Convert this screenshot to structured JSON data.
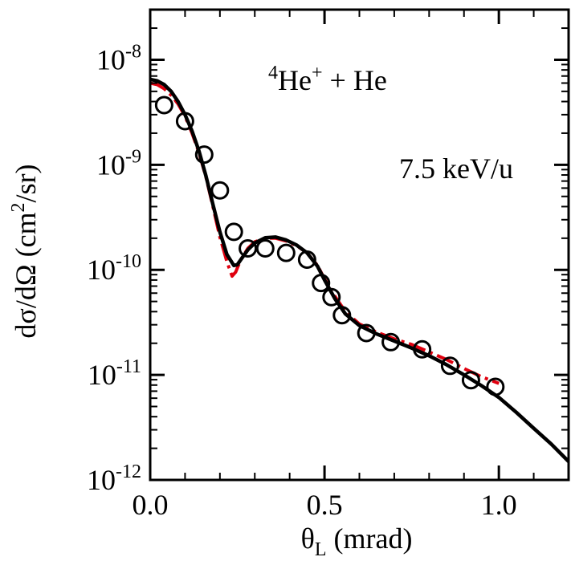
{
  "chart_data": {
    "type": "line",
    "title": "",
    "xlabel": {
      "symbol": "θ",
      "subscript": "L",
      "unit": " (mrad)"
    },
    "ylabel": {
      "main": "dσ/dΩ (cm",
      "sup": "2",
      "tail": "/sr)"
    },
    "annotations": {
      "reaction": {
        "mass_number": "4",
        "ion": "He",
        "charge": "+",
        "rest": " + He"
      },
      "energy": "7.5 keV/u"
    },
    "xlim": [
      0.0,
      1.2
    ],
    "ylim": [
      1e-12,
      3e-08
    ],
    "yscale": "log",
    "grid": false,
    "legend": "none",
    "x_ticks": [
      {
        "value": 0.0,
        "label": "0.0"
      },
      {
        "value": 0.5,
        "label": "0.5"
      },
      {
        "value": 1.0,
        "label": "1.0"
      }
    ],
    "y_ticks": [
      {
        "value": 1e-08,
        "base": "10",
        "exp": "-8"
      },
      {
        "value": 1e-09,
        "base": "10",
        "exp": "-9"
      },
      {
        "value": 1e-10,
        "base": "10",
        "exp": "-10"
      },
      {
        "value": 1e-11,
        "base": "10",
        "exp": "-11"
      },
      {
        "value": 1e-12,
        "base": "10",
        "exp": "-12"
      }
    ],
    "series": [
      {
        "style": "dashdot",
        "color": "#e0000f",
        "x": [
          0.0,
          0.02,
          0.04,
          0.06,
          0.08,
          0.1,
          0.12,
          0.14,
          0.16,
          0.18,
          0.2,
          0.22,
          0.235,
          0.245,
          0.26,
          0.28,
          0.3,
          0.33,
          0.36,
          0.39,
          0.42,
          0.45,
          0.48,
          0.5,
          0.53,
          0.56,
          0.6,
          0.65,
          0.7,
          0.75,
          0.8,
          0.85,
          0.9,
          0.95,
          1.0
        ],
        "y": [
          6e-09,
          5.8e-09,
          5.3e-09,
          4.6e-09,
          3.8e-09,
          2.9e-09,
          2e-09,
          1.3e-09,
          7.6e-10,
          4e-10,
          2.05e-10,
          1.2e-10,
          8.7e-11,
          9.5e-11,
          1.25e-10,
          1.6e-10,
          1.85e-10,
          2e-10,
          2e-10,
          1.88e-10,
          1.7e-10,
          1.45e-10,
          1.1e-10,
          8.2e-11,
          5.6e-11,
          4e-11,
          3.05e-11,
          2.55e-11,
          2.2e-11,
          1.95e-11,
          1.65e-11,
          1.4e-11,
          1.15e-11,
          9.6e-12,
          8.3e-12
        ]
      },
      {
        "style": "solid",
        "color": "#000000",
        "x": [
          0.0,
          0.02,
          0.04,
          0.06,
          0.08,
          0.1,
          0.12,
          0.14,
          0.16,
          0.18,
          0.2,
          0.22,
          0.24,
          0.25,
          0.26,
          0.28,
          0.3,
          0.33,
          0.36,
          0.39,
          0.42,
          0.45,
          0.48,
          0.5,
          0.53,
          0.56,
          0.6,
          0.65,
          0.7,
          0.75,
          0.8,
          0.85,
          0.9,
          0.95,
          1.0,
          1.05,
          1.1,
          1.15,
          1.2
        ],
        "y": [
          6.5e-09,
          6.3e-09,
          5.8e-09,
          5e-09,
          4e-09,
          3e-09,
          2.1e-09,
          1.35e-09,
          7.8e-10,
          4.2e-10,
          2.3e-10,
          1.4e-10,
          1.1e-10,
          1.12e-10,
          1.25e-10,
          1.55e-10,
          1.8e-10,
          2.02e-10,
          2.05e-10,
          1.92e-10,
          1.72e-10,
          1.45e-10,
          1.08e-10,
          8e-11,
          5.3e-11,
          3.8e-11,
          2.95e-11,
          2.45e-11,
          2.1e-11,
          1.8e-11,
          1.52e-11,
          1.25e-11,
          1e-11,
          7.9e-12,
          6.1e-12,
          4.4e-12,
          3.1e-12,
          2.2e-12,
          1.5e-12
        ]
      },
      {
        "style": "markers",
        "marker": "open-circle",
        "color": "#000000",
        "x": [
          0.04,
          0.1,
          0.155,
          0.2,
          0.24,
          0.28,
          0.33,
          0.39,
          0.45,
          0.49,
          0.52,
          0.55,
          0.62,
          0.69,
          0.78,
          0.86,
          0.92,
          0.99
        ],
        "y": [
          3.7e-09,
          2.6e-09,
          1.25e-09,
          5.7e-10,
          2.3e-10,
          1.6e-10,
          1.6e-10,
          1.45e-10,
          1.25e-10,
          7.5e-11,
          5.5e-11,
          3.7e-11,
          2.5e-11,
          2.05e-11,
          1.75e-11,
          1.22e-11,
          8.9e-12,
          7.7e-12
        ]
      }
    ]
  }
}
